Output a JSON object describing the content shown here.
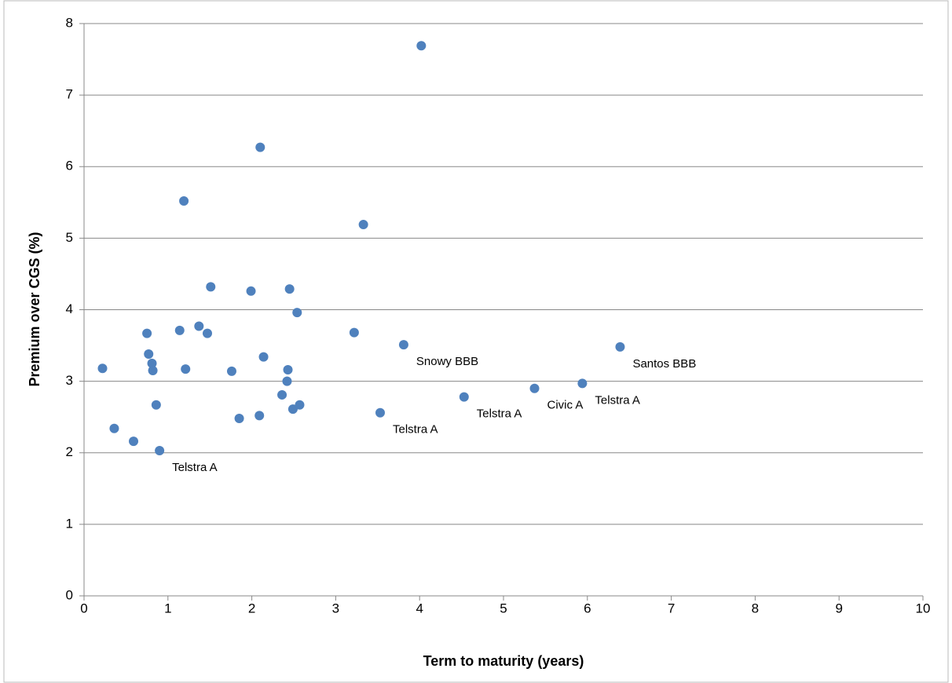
{
  "chart_data": {
    "type": "scatter",
    "x_label": "Term to maturity (years)",
    "y_label": "Premium over CGS (%)",
    "color": "#4f81bd",
    "grid": true,
    "xlim": [
      0,
      10
    ],
    "xticks": [
      0,
      1,
      2,
      3,
      4,
      5,
      6,
      7,
      8,
      9,
      10
    ],
    "ylim": [
      0,
      8
    ],
    "yticks": [
      0,
      1,
      2,
      3,
      4,
      5,
      6,
      7,
      8
    ],
    "x": [
      0.22,
      0.36,
      0.59,
      0.9,
      0.75,
      0.77,
      0.81,
      0.82,
      0.86,
      1.14,
      1.19,
      1.21,
      1.37,
      1.47,
      1.51,
      1.76,
      1.85,
      1.99,
      2.09,
      2.1,
      2.14,
      2.36,
      2.42,
      2.43,
      2.45,
      2.49,
      2.54,
      2.57,
      3.22,
      3.33,
      3.53,
      3.81,
      4.02,
      4.53,
      5.37,
      5.94,
      6.39
    ],
    "values": [
      3.18,
      2.34,
      2.16,
      2.03,
      3.67,
      3.38,
      3.25,
      3.15,
      2.67,
      3.71,
      5.52,
      3.17,
      3.77,
      3.67,
      4.32,
      3.14,
      2.48,
      4.26,
      2.52,
      6.27,
      3.34,
      2.81,
      3.0,
      3.16,
      4.29,
      2.61,
      3.96,
      2.67,
      3.68,
      5.19,
      2.56,
      3.51,
      7.69,
      2.78,
      2.9,
      2.97,
      3.48
    ],
    "labels": [
      null,
      null,
      null,
      "Telstra A",
      null,
      null,
      null,
      null,
      null,
      null,
      null,
      null,
      null,
      null,
      null,
      null,
      null,
      null,
      null,
      null,
      null,
      null,
      null,
      null,
      null,
      null,
      null,
      null,
      null,
      null,
      "Telstra A",
      "Snowy BBB",
      null,
      "Telstra A",
      "Civic A",
      "Telstra A",
      "Santos BBB"
    ]
  }
}
